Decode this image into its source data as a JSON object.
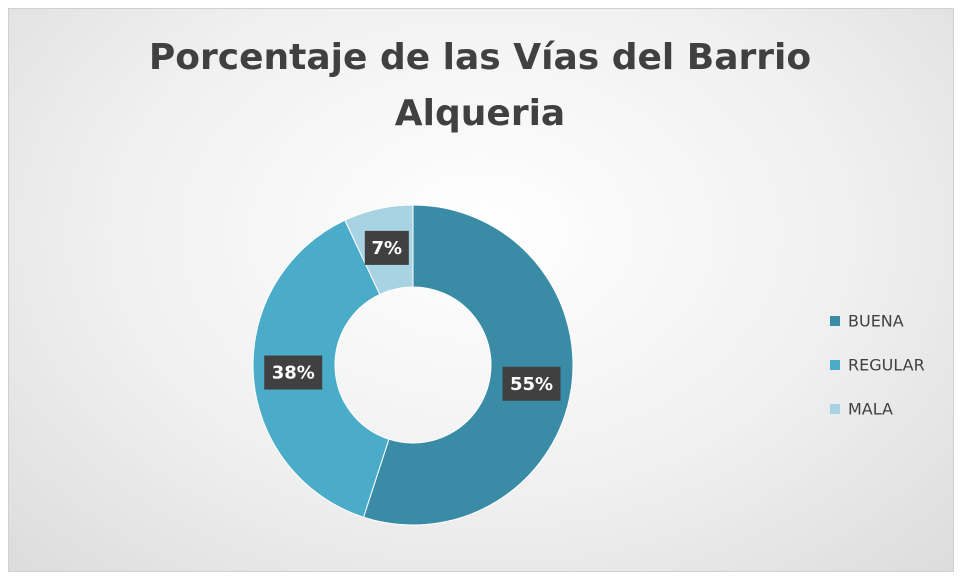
{
  "chart_data": {
    "type": "donut",
    "title": "Porcentaje de las Vías del Barrio Alqueria",
    "categories": [
      "BUENA",
      "REGULAR",
      "MALA"
    ],
    "values": [
      55,
      38,
      7
    ],
    "value_labels": [
      "55%",
      "38%",
      "7%"
    ],
    "colors": [
      "#3a8ca6",
      "#4aacc8",
      "#a8d3e2"
    ],
    "legend": "right"
  }
}
